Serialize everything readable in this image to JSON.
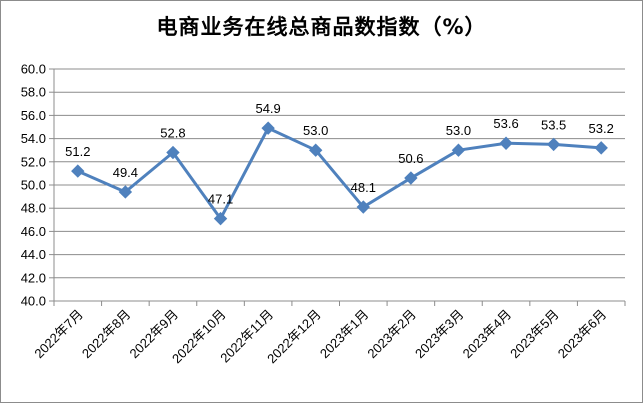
{
  "chart_data": {
    "type": "line",
    "title": "电商业务在线总商品数指数（%）",
    "categories": [
      "2022年7月",
      "2022年8月",
      "2022年9月",
      "2022年10月",
      "2022年11月",
      "2022年12月",
      "2023年1月",
      "2023年2月",
      "2023年3月",
      "2023年4月",
      "2023年5月",
      "2023年6月"
    ],
    "series": [
      {
        "values": [
          51.2,
          49.4,
          52.8,
          47.1,
          54.9,
          53.0,
          48.1,
          50.6,
          53.0,
          53.6,
          53.5,
          53.2
        ],
        "labels": [
          "51.2",
          "49.4",
          "52.8",
          "47.1",
          "54.9",
          "53.0",
          "48.1",
          "50.6",
          "53.0",
          "53.6",
          "53.5",
          "53.2"
        ],
        "color": "#4f81bd"
      }
    ],
    "ylim": [
      40.0,
      60.0
    ],
    "yticks": [
      "40.0",
      "42.0",
      "44.0",
      "46.0",
      "48.0",
      "50.0",
      "52.0",
      "54.0",
      "56.0",
      "58.0",
      "60.0"
    ],
    "grid": true,
    "gridColor": "#8c8c8c",
    "legend": "none",
    "xlabel": "",
    "ylabel": ""
  }
}
